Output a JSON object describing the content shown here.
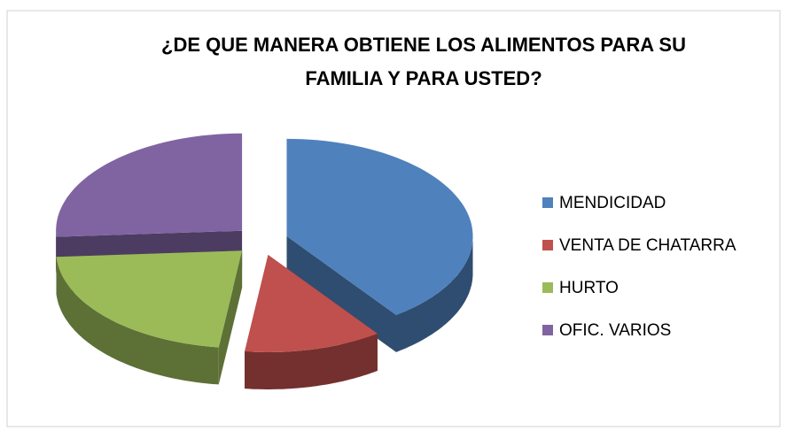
{
  "chart_data": {
    "type": "pie3d",
    "title": [
      "¿DE QUE MANERA OBTIENE LOS ALIMENTOS PARA SU",
      "FAMILIA Y PARA USTED?"
    ],
    "categories": [
      "MENDICIDAD",
      "VENTA DE CHATARRA",
      "HURTO",
      "OFIC. VARIOS"
    ],
    "values": [
      40,
      12,
      22,
      26
    ],
    "colors": [
      "#4f81bd",
      "#c0504d",
      "#9bbb59",
      "#8064a2"
    ],
    "legend": "right",
    "exploded": true
  }
}
